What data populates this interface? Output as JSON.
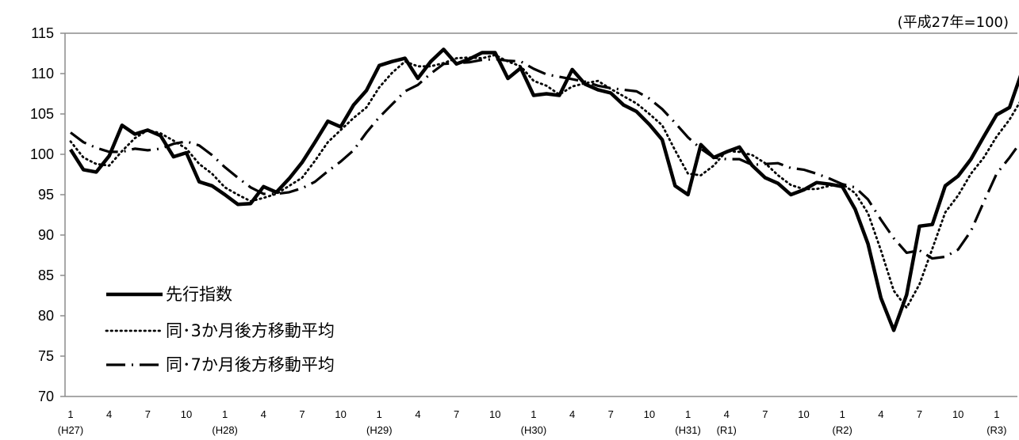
{
  "chart_data": {
    "type": "line",
    "unit_note": "(平成27年=100)",
    "ylim": [
      70,
      115
    ],
    "yticks": [
      70,
      75,
      80,
      85,
      90,
      95,
      100,
      105,
      110,
      115
    ],
    "x_month_labels": [
      "1",
      "4",
      "7",
      "10",
      "1",
      "4",
      "7",
      "10",
      "1",
      "4",
      "7",
      "10",
      "1",
      "4",
      "7",
      "10",
      "1",
      "4",
      "7",
      "10",
      "1",
      "4",
      "7",
      "10",
      "1"
    ],
    "x_era_labels": [
      {
        "index": 0,
        "label": "(H27)"
      },
      {
        "index": 12,
        "label": "(H28)"
      },
      {
        "index": 24,
        "label": "(H29)"
      },
      {
        "index": 36,
        "label": "(H30)"
      },
      {
        "index": 48,
        "label": "(H31)"
      },
      {
        "index": 51,
        "label": "(R1)"
      },
      {
        "index": 60,
        "label": "(R2)"
      },
      {
        "index": 72,
        "label": "(R3)"
      }
    ],
    "grid": false,
    "legend_position": "bottom-left",
    "series": [
      {
        "name": "先行指数",
        "style": "solid",
        "values": [
          100.6,
          98.1,
          97.8,
          99.8,
          103.6,
          102.5,
          103.0,
          102.3,
          99.7,
          100.2,
          96.6,
          96.1,
          95.0,
          93.8,
          93.9,
          96.0,
          95.3,
          97.0,
          99.0,
          101.5,
          104.1,
          103.4,
          106.1,
          107.9,
          111.0,
          111.5,
          111.9,
          109.4,
          111.5,
          113.0,
          111.2,
          111.8,
          112.6,
          112.6,
          109.4,
          110.7,
          107.3,
          107.5,
          107.3,
          110.5,
          108.7,
          108.0,
          107.6,
          106.1,
          105.3,
          103.7,
          101.8,
          96.1,
          95.0,
          101.2,
          99.6,
          100.3,
          100.9,
          98.6,
          97.1,
          96.4,
          95.0,
          95.6,
          96.5,
          96.3,
          96.0,
          93.2,
          88.9,
          82.2,
          78.2,
          82.6,
          91.1,
          91.3,
          96.1,
          97.3,
          99.4,
          102.2,
          104.9,
          105.8,
          110.4
        ]
      },
      {
        "name": "同･3か月後方移動平均",
        "style": "dotted",
        "values": [
          101.6,
          99.6,
          98.8,
          98.6,
          100.4,
          102.0,
          103.0,
          102.6,
          101.7,
          100.7,
          98.8,
          97.6,
          95.9,
          95.0,
          94.2,
          94.6,
          95.1,
          96.1,
          97.1,
          99.2,
          101.5,
          103.0,
          104.5,
          105.8,
          108.3,
          110.1,
          111.5,
          110.9,
          110.9,
          111.3,
          111.9,
          112.0,
          111.9,
          112.3,
          111.5,
          110.9,
          109.1,
          108.5,
          107.4,
          108.4,
          108.8,
          109.1,
          108.1,
          107.2,
          106.3,
          105.0,
          103.6,
          100.5,
          97.6,
          97.4,
          98.6,
          100.4,
          100.3,
          99.9,
          98.9,
          97.4,
          96.2,
          95.7,
          95.7,
          96.1,
          96.3,
          95.2,
          92.7,
          88.1,
          83.1,
          81.0,
          83.9,
          88.3,
          92.8,
          94.9,
          97.6,
          99.6,
          102.2,
          104.3,
          107.0
        ]
      },
      {
        "name": "同･7か月後方移動平均",
        "style": "dashdot",
        "values": [
          102.7,
          101.5,
          100.8,
          100.3,
          100.3,
          100.7,
          100.5,
          100.7,
          101.3,
          101.6,
          101.1,
          99.9,
          98.4,
          97.1,
          95.9,
          95.1,
          95.1,
          95.3,
          95.8,
          96.6,
          97.9,
          99.1,
          100.5,
          102.7,
          104.6,
          106.2,
          107.8,
          108.6,
          110.0,
          111.2,
          111.3,
          111.4,
          111.7,
          111.8,
          111.6,
          111.5,
          110.6,
          109.9,
          109.6,
          109.3,
          109.0,
          108.5,
          108.2,
          108.0,
          107.8,
          106.9,
          105.6,
          103.9,
          102.1,
          100.7,
          99.6,
          99.4,
          99.4,
          98.7,
          98.8,
          98.9,
          98.3,
          98.1,
          97.6,
          97.0,
          96.3,
          95.9,
          94.4,
          91.9,
          89.6,
          87.8,
          88.1,
          87.1,
          87.3,
          88.2,
          90.5,
          94.1,
          97.6,
          99.6,
          101.8
        ]
      }
    ]
  }
}
